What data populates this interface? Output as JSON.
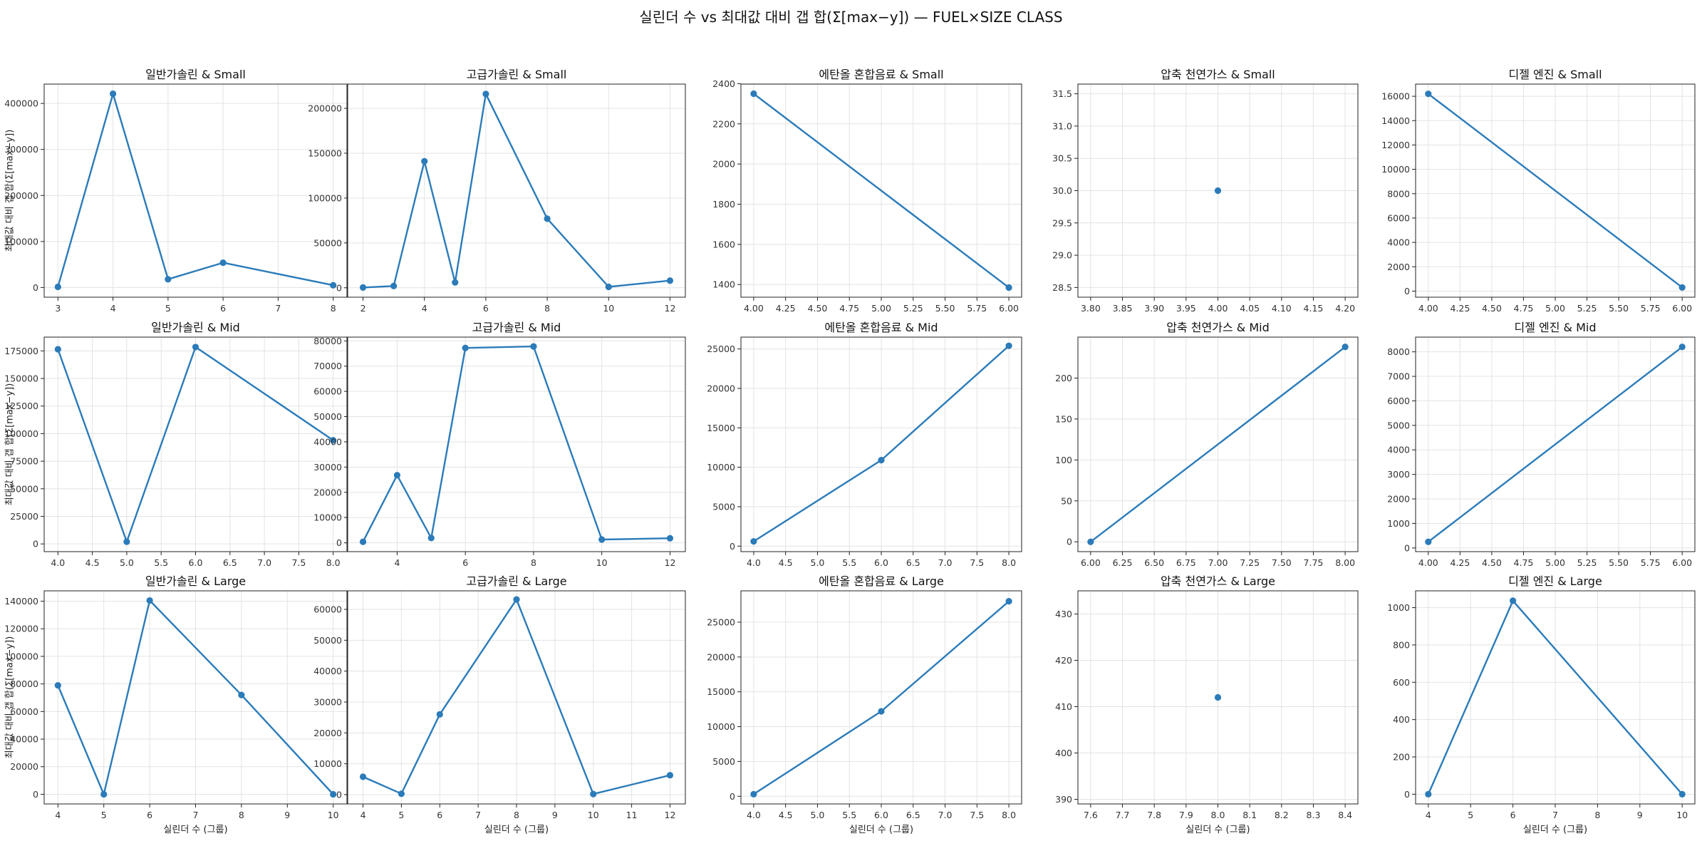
{
  "figure": {
    "title": "실린더 수 vs 최대값 대비 갭 합(Σ[max−y]) — FUEL×SIZE CLASS",
    "series_color": "#2b7bb9",
    "shared_xlabel": "실린더 수 (그룹)",
    "shared_ylabel": "최대값 대비 갭 합(Σ[max−y])"
  },
  "chart_data": [
    {
      "type": "line",
      "title": "일반가솔린 & Small",
      "xlabel": "",
      "ylabel": "최대값 대비 갭 합(Σ[max−y])",
      "x": [
        3,
        4,
        5,
        6,
        8
      ],
      "y": [
        1500,
        421000,
        18000,
        54000,
        5000
      ],
      "xlim": [
        2.75,
        8.25
      ],
      "ylim": [
        -21000,
        442000
      ],
      "xticks": [
        3,
        4,
        5,
        6,
        7,
        8
      ],
      "xtick_labels": [
        "3",
        "4",
        "5",
        "6",
        "7",
        "8"
      ],
      "yticks": [
        0,
        100000,
        200000,
        300000,
        400000
      ],
      "ytick_labels": [
        "0",
        "100000",
        "200000",
        "300000",
        "400000"
      ],
      "grid": true
    },
    {
      "type": "line",
      "title": "고급가솔린 & Small",
      "xlabel": "",
      "ylabel": "",
      "x": [
        2,
        3,
        4,
        5,
        6,
        8,
        10,
        12
      ],
      "y": [
        300,
        2000,
        141000,
        6000,
        216000,
        77000,
        1000,
        8000
      ],
      "xlim": [
        1.5,
        12.5
      ],
      "ylim": [
        -10500,
        227000
      ],
      "xticks": [
        2,
        4,
        6,
        8,
        10,
        12
      ],
      "xtick_labels": [
        "2",
        "4",
        "6",
        "8",
        "10",
        "12"
      ],
      "yticks": [
        0,
        50000,
        100000,
        150000,
        200000
      ],
      "ytick_labels": [
        "0",
        "50000",
        "100000",
        "150000",
        "200000"
      ],
      "grid": true
    },
    {
      "type": "line",
      "title": "에탄올 혼합음료 & Small",
      "xlabel": "",
      "ylabel": "",
      "x": [
        4,
        6
      ],
      "y": [
        2350,
        1385
      ],
      "xlim": [
        3.9,
        6.1
      ],
      "ylim": [
        1337,
        2398
      ],
      "xticks": [
        4,
        4.25,
        4.5,
        4.75,
        5,
        5.25,
        5.5,
        5.75,
        6
      ],
      "xtick_labels": [
        "4.00",
        "4.25",
        "4.50",
        "4.75",
        "5.00",
        "5.25",
        "5.50",
        "5.75",
        "6.00"
      ],
      "yticks": [
        1400,
        1600,
        1800,
        2000,
        2200,
        2400
      ],
      "ytick_labels": [
        "1400",
        "1600",
        "1800",
        "2000",
        "2200",
        "2400"
      ],
      "grid": true
    },
    {
      "type": "scatter",
      "title": "압축 천연가스 & Small",
      "xlabel": "",
      "ylabel": "",
      "x": [
        4
      ],
      "y": [
        30
      ],
      "xlim": [
        3.78,
        4.22
      ],
      "ylim": [
        28.35,
        31.65
      ],
      "xticks": [
        3.8,
        3.85,
        3.9,
        3.95,
        4,
        4.05,
        4.1,
        4.15,
        4.2
      ],
      "xtick_labels": [
        "3.80",
        "3.85",
        "3.90",
        "3.95",
        "4.00",
        "4.05",
        "4.10",
        "4.15",
        "4.20"
      ],
      "yticks": [
        28.5,
        29,
        29.5,
        30,
        30.5,
        31,
        31.5
      ],
      "ytick_labels": [
        "28.5",
        "29.0",
        "29.5",
        "30.0",
        "30.5",
        "31.0",
        "31.5"
      ],
      "grid": true
    },
    {
      "type": "line",
      "title": "디젤 엔진 & Small",
      "xlabel": "",
      "ylabel": "",
      "x": [
        4,
        6
      ],
      "y": [
        16200,
        300
      ],
      "xlim": [
        3.9,
        6.1
      ],
      "ylim": [
        -500,
        17000
      ],
      "xticks": [
        4,
        4.25,
        4.5,
        4.75,
        5,
        5.25,
        5.5,
        5.75,
        6
      ],
      "xtick_labels": [
        "4.00",
        "4.25",
        "4.50",
        "4.75",
        "5.00",
        "5.25",
        "5.50",
        "5.75",
        "6.00"
      ],
      "yticks": [
        0,
        2000,
        4000,
        6000,
        8000,
        10000,
        12000,
        14000,
        16000
      ],
      "ytick_labels": [
        "0",
        "2000",
        "4000",
        "6000",
        "8000",
        "10000",
        "12000",
        "14000",
        "16000"
      ],
      "grid": true
    },
    {
      "type": "line",
      "title": "일반가솔린 & Mid",
      "xlabel": "",
      "ylabel": "최대값 대비 갭 합(Σ[max−y])",
      "x": [
        4,
        5,
        6,
        8
      ],
      "y": [
        176500,
        2000,
        178500,
        94000
      ],
      "xlim": [
        3.8,
        8.2
      ],
      "ylim": [
        -7000,
        187500
      ],
      "xticks": [
        4,
        4.5,
        5,
        5.5,
        6,
        6.5,
        7,
        7.5,
        8
      ],
      "xtick_labels": [
        "4.0",
        "4.5",
        "5.0",
        "5.5",
        "6.0",
        "6.5",
        "7.0",
        "7.5",
        "8.0"
      ],
      "yticks": [
        0,
        25000,
        50000,
        75000,
        100000,
        125000,
        150000,
        175000
      ],
      "ytick_labels": [
        "0",
        "25000",
        "50000",
        "75000",
        "100000",
        "125000",
        "150000",
        "175000"
      ],
      "grid": true
    },
    {
      "type": "line",
      "title": "고급가솔린 & Mid",
      "xlabel": "",
      "ylabel": "",
      "x": [
        3,
        4,
        5,
        6,
        8,
        10,
        12
      ],
      "y": [
        400,
        26800,
        1900,
        77200,
        77800,
        1300,
        1800
      ],
      "xlim": [
        2.55,
        12.45
      ],
      "ylim": [
        -3500,
        81500
      ],
      "xticks": [
        4,
        6,
        8,
        10,
        12
      ],
      "xtick_labels": [
        "4",
        "6",
        "8",
        "10",
        "12"
      ],
      "yticks": [
        0,
        10000,
        20000,
        30000,
        40000,
        50000,
        60000,
        70000,
        80000
      ],
      "ytick_labels": [
        "0",
        "10000",
        "20000",
        "30000",
        "40000",
        "50000",
        "60000",
        "70000",
        "80000"
      ],
      "grid": true
    },
    {
      "type": "line",
      "title": "에탄올 혼합음료 & Mid",
      "xlabel": "",
      "ylabel": "",
      "x": [
        4,
        6,
        8
      ],
      "y": [
        600,
        10900,
        25400
      ],
      "xlim": [
        3.8,
        8.2
      ],
      "ylim": [
        -700,
        26500
      ],
      "xticks": [
        4,
        4.5,
        5,
        5.5,
        6,
        6.5,
        7,
        7.5,
        8
      ],
      "xtick_labels": [
        "4.0",
        "4.5",
        "5.0",
        "5.5",
        "6.0",
        "6.5",
        "7.0",
        "7.5",
        "8.0"
      ],
      "yticks": [
        0,
        5000,
        10000,
        15000,
        20000,
        25000
      ],
      "ytick_labels": [
        "0",
        "5000",
        "10000",
        "15000",
        "20000",
        "25000"
      ],
      "grid": true
    },
    {
      "type": "line",
      "title": "압축 천연가스 & Mid",
      "xlabel": "",
      "ylabel": "",
      "x": [
        6,
        8
      ],
      "y": [
        0,
        238
      ],
      "xlim": [
        5.9,
        8.1
      ],
      "ylim": [
        -12,
        250
      ],
      "xticks": [
        6,
        6.25,
        6.5,
        6.75,
        7,
        7.25,
        7.5,
        7.75,
        8
      ],
      "xtick_labels": [
        "6.00",
        "6.25",
        "6.50",
        "6.75",
        "7.00",
        "7.25",
        "7.50",
        "7.75",
        "8.00"
      ],
      "yticks": [
        0,
        50,
        100,
        150,
        200
      ],
      "ytick_labels": [
        "0",
        "50",
        "100",
        "150",
        "200"
      ],
      "grid": true
    },
    {
      "type": "line",
      "title": "디젤 엔진 & Mid",
      "xlabel": "",
      "ylabel": "",
      "x": [
        4,
        6
      ],
      "y": [
        250,
        8200
      ],
      "xlim": [
        3.9,
        6.1
      ],
      "ylim": [
        -150,
        8600
      ],
      "xticks": [
        4,
        4.25,
        4.5,
        4.75,
        5,
        5.25,
        5.5,
        5.75,
        6
      ],
      "xtick_labels": [
        "4.00",
        "4.25",
        "4.50",
        "4.75",
        "5.00",
        "5.25",
        "5.50",
        "5.75",
        "6.00"
      ],
      "yticks": [
        0,
        1000,
        2000,
        3000,
        4000,
        5000,
        6000,
        7000,
        8000
      ],
      "ytick_labels": [
        "0",
        "1000",
        "2000",
        "3000",
        "4000",
        "5000",
        "6000",
        "7000",
        "8000"
      ],
      "grid": true
    },
    {
      "type": "line",
      "title": "일반가솔린 & Large",
      "xlabel": "실린더 수 (그룹)",
      "ylabel": "최대값 대비 갭 합(Σ[max−y])",
      "x": [
        4,
        5,
        6,
        8,
        10
      ],
      "y": [
        79000,
        0,
        140500,
        72000,
        0
      ],
      "xlim": [
        3.7,
        10.3
      ],
      "ylim": [
        -7000,
        147500
      ],
      "xticks": [
        4,
        5,
        6,
        7,
        8,
        9,
        10
      ],
      "xtick_labels": [
        "4",
        "5",
        "6",
        "7",
        "8",
        "9",
        "10"
      ],
      "yticks": [
        0,
        20000,
        40000,
        60000,
        80000,
        100000,
        120000,
        140000
      ],
      "ytick_labels": [
        "0",
        "20000",
        "40000",
        "60000",
        "80000",
        "100000",
        "120000",
        "140000"
      ],
      "grid": true
    },
    {
      "type": "line",
      "title": "고급가솔린 & Large",
      "xlabel": "실린더 수 (그룹)",
      "ylabel": "",
      "x": [
        4,
        5,
        6,
        8,
        10,
        12
      ],
      "y": [
        5800,
        300,
        26000,
        63200,
        200,
        6300
      ],
      "xlim": [
        3.6,
        12.4
      ],
      "ylim": [
        -3000,
        66000
      ],
      "xticks": [
        4,
        5,
        6,
        7,
        8,
        9,
        10,
        11,
        12
      ],
      "xtick_labels": [
        "4",
        "5",
        "6",
        "7",
        "8",
        "9",
        "10",
        "11",
        "12"
      ],
      "yticks": [
        0,
        10000,
        20000,
        30000,
        40000,
        50000,
        60000
      ],
      "ytick_labels": [
        "0",
        "10000",
        "20000",
        "30000",
        "40000",
        "50000",
        "60000"
      ],
      "grid": true
    },
    {
      "type": "line",
      "title": "에탄올 혼합음료 & Large",
      "xlabel": "실린더 수 (그룹)",
      "ylabel": "",
      "x": [
        4,
        6,
        8
      ],
      "y": [
        300,
        12200,
        28000
      ],
      "xlim": [
        3.8,
        8.2
      ],
      "ylim": [
        -1100,
        29500
      ],
      "xticks": [
        4,
        4.5,
        5,
        5.5,
        6,
        6.5,
        7,
        7.5,
        8
      ],
      "xtick_labels": [
        "4.0",
        "4.5",
        "5.0",
        "5.5",
        "6.0",
        "6.5",
        "7.0",
        "7.5",
        "8.0"
      ],
      "yticks": [
        0,
        5000,
        10000,
        15000,
        20000,
        25000
      ],
      "ytick_labels": [
        "0",
        "5000",
        "10000",
        "15000",
        "20000",
        "25000"
      ],
      "grid": true
    },
    {
      "type": "scatter",
      "title": "압축 천연가스 & Large",
      "xlabel": "실린더 수 (그룹)",
      "ylabel": "",
      "x": [
        8
      ],
      "y": [
        412
      ],
      "xlim": [
        7.56,
        8.44
      ],
      "ylim": [
        389,
        435
      ],
      "xticks": [
        7.6,
        7.7,
        7.8,
        7.9,
        8,
        8.1,
        8.2,
        8.3,
        8.4
      ],
      "xtick_labels": [
        "7.6",
        "7.7",
        "7.8",
        "7.9",
        "8.0",
        "8.1",
        "8.2",
        "8.3",
        "8.4"
      ],
      "yticks": [
        390,
        400,
        410,
        420,
        430
      ],
      "ytick_labels": [
        "390",
        "400",
        "410",
        "420",
        "430"
      ],
      "grid": true
    },
    {
      "type": "line",
      "title": "디젤 엔진 & Large",
      "xlabel": "실린더 수 (그룹)",
      "ylabel": "",
      "x": [
        4,
        6,
        10
      ],
      "y": [
        0,
        1037,
        0
      ],
      "xlim": [
        3.7,
        10.3
      ],
      "ylim": [
        -52,
        1090
      ],
      "xticks": [
        4,
        5,
        6,
        7,
        8,
        9,
        10
      ],
      "xtick_labels": [
        "4",
        "5",
        "6",
        "7",
        "8",
        "9",
        "10"
      ],
      "yticks": [
        0,
        200,
        400,
        600,
        800,
        1000
      ],
      "ytick_labels": [
        "0",
        "200",
        "400",
        "600",
        "800",
        "1000"
      ],
      "grid": true
    }
  ]
}
